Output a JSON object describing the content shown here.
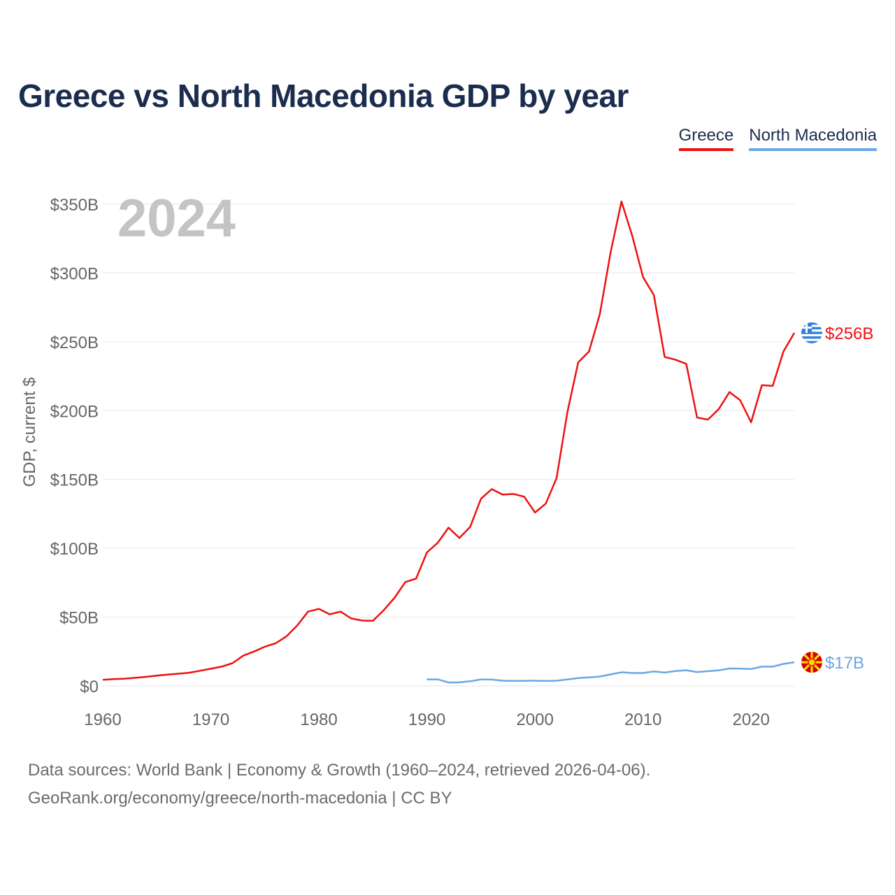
{
  "title": "Greece vs North Macedonia GDP by year",
  "year_watermark": "2024",
  "legend": [
    {
      "label": "Greece",
      "color": "#ee1111"
    },
    {
      "label": "North Macedonia",
      "color": "#6aa7e6"
    }
  ],
  "footer": {
    "line1": "Data sources: World Bank | Economy & Growth (1960–2024, retrieved 2026-04-06).",
    "line2": "GeoRank.org/economy/greece/north-macedonia | CC BY"
  },
  "chart_data": {
    "type": "line",
    "title": "Greece vs North Macedonia GDP by year",
    "xlabel": "",
    "ylabel": "GDP, current $",
    "xlim": [
      1960,
      2024
    ],
    "ylim": [
      0,
      350
    ],
    "yunit": "billions USD",
    "x_ticks": [
      1960,
      1970,
      1980,
      1990,
      2000,
      2010,
      2020
    ],
    "y_ticks": [
      {
        "value": 0,
        "label": "$0"
      },
      {
        "value": 50,
        "label": "$50B"
      },
      {
        "value": 100,
        "label": "$100B"
      },
      {
        "value": 150,
        "label": "$150B"
      },
      {
        "value": 200,
        "label": "$200B"
      },
      {
        "value": 250,
        "label": "$250B"
      },
      {
        "value": 300,
        "label": "$300B"
      },
      {
        "value": 350,
        "label": "$350B"
      }
    ],
    "series": [
      {
        "name": "Greece",
        "color": "#ee1111",
        "end_label": "$256B",
        "flag_icon": "greece-flag-icon",
        "x": [
          1960,
          1961,
          1962,
          1963,
          1964,
          1965,
          1966,
          1967,
          1968,
          1969,
          1970,
          1971,
          1972,
          1973,
          1974,
          1975,
          1976,
          1977,
          1978,
          1979,
          1980,
          1981,
          1982,
          1983,
          1984,
          1985,
          1986,
          1987,
          1988,
          1989,
          1990,
          1991,
          1992,
          1993,
          1994,
          1995,
          1996,
          1997,
          1998,
          1999,
          2000,
          2001,
          2002,
          2003,
          2004,
          2005,
          2006,
          2007,
          2008,
          2009,
          2010,
          2011,
          2012,
          2013,
          2014,
          2015,
          2016,
          2017,
          2018,
          2019,
          2020,
          2021,
          2022,
          2023,
          2024
        ],
        "values": [
          4.4,
          5.0,
          5.3,
          5.9,
          6.6,
          7.5,
          8.3,
          8.9,
          9.6,
          11.0,
          12.5,
          14.0,
          16.5,
          22.0,
          25.0,
          28.5,
          31.0,
          36.0,
          44.0,
          54.0,
          56.0,
          52.0,
          54.0,
          49.0,
          47.5,
          47.3,
          55.0,
          64.0,
          75.5,
          78.0,
          97.0,
          104.0,
          115.0,
          107.5,
          115.5,
          136.0,
          143.0,
          139.0,
          139.5,
          137.5,
          126.0,
          132.5,
          151.0,
          199.0,
          235.0,
          243.0,
          270.0,
          315.0,
          352.0,
          327.0,
          297.0,
          284.0,
          239.0,
          237.0,
          234.0,
          195.0,
          193.5,
          201.0,
          213.5,
          207.5,
          191.5,
          218.5,
          218.0,
          243.0,
          256.5
        ]
      },
      {
        "name": "North Macedonia",
        "color": "#6aa7e6",
        "end_label": "$17B",
        "flag_icon": "north-macedonia-flag-icon",
        "x": [
          1990,
          1991,
          1992,
          1993,
          1994,
          1995,
          1996,
          1997,
          1998,
          1999,
          2000,
          2001,
          2002,
          2003,
          2004,
          2005,
          2006,
          2007,
          2008,
          2009,
          2010,
          2011,
          2012,
          2013,
          2014,
          2015,
          2016,
          2017,
          2018,
          2019,
          2020,
          2021,
          2022,
          2023,
          2024
        ],
        "values": [
          4.7,
          4.8,
          2.5,
          2.6,
          3.4,
          4.7,
          4.6,
          3.8,
          3.7,
          3.7,
          3.8,
          3.6,
          3.8,
          4.7,
          5.7,
          6.2,
          6.8,
          8.4,
          9.9,
          9.4,
          9.4,
          10.5,
          9.7,
          10.8,
          11.4,
          10.1,
          10.7,
          11.3,
          12.7,
          12.6,
          12.3,
          14.0,
          14.0,
          16.0,
          17.2
        ]
      }
    ]
  }
}
